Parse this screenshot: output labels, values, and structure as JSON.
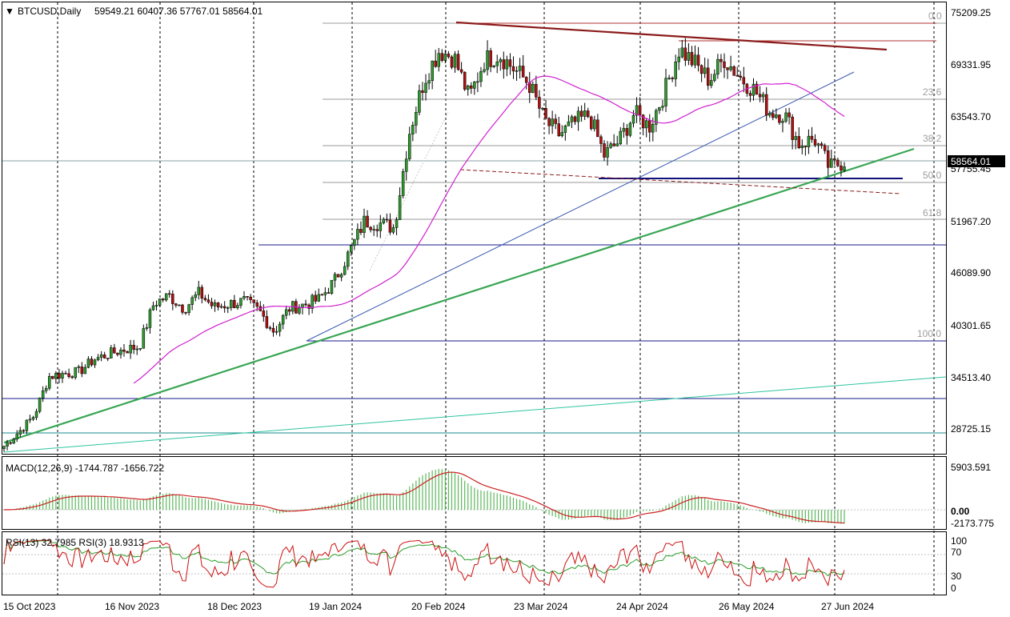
{
  "symbol": "BTCUSD",
  "timeframe": "Daily",
  "header": {
    "title": "BTCUSD,Daily",
    "ohlc": "59549.21 60407.36 57767.01 58564.01"
  },
  "current_price_label": "58564.01",
  "price_axis": [
    "75209.25",
    "69331.95",
    "63543.70",
    "57755.45",
    "51967.20",
    "46089.90",
    "40301.65",
    "34513.40",
    "28725.15"
  ],
  "fibonacci": {
    "levels": [
      "0.0",
      "23.6",
      "38.2",
      "50.0",
      "61.8",
      "100.0"
    ]
  },
  "macd": {
    "title": "MACD(12,26,9) -1744.787 -1656.722",
    "axis": [
      "5903.591",
      "0.00",
      "-2173.775"
    ]
  },
  "rsi": {
    "title": "RSI(13) 32.7985 RSI(3) 18.9313",
    "axis": [
      "100",
      "70",
      "30",
      "0"
    ]
  },
  "time_axis": [
    "15 Oct 2023",
    "16 Nov 2023",
    "18 Dec 2023",
    "19 Jan 2024",
    "20 Feb 2024",
    "23 Mar 2024",
    "24 Apr 2024",
    "26 May 2024",
    "27 Jun 2024"
  ],
  "colors": {
    "bull": "#2e9b2e",
    "bear": "#b01010",
    "ma": "#d020d0",
    "macd_hist": "#5cb85c",
    "macd_signal": "#cc2020",
    "rsi13": "#2a9d2a",
    "rsi3": "#cc1111",
    "trend_green": "#3aa655",
    "resistance": "#8b1a1a",
    "support": "#1a1a8b"
  },
  "chart_data": {
    "type": "candlestick",
    "title": "BTCUSD,Daily",
    "x_start": "2023-10-12",
    "y_range": [
      23500,
      76000
    ],
    "candles_close_weekly": [
      26800,
      28400,
      30200,
      34600,
      34900,
      35100,
      36500,
      37100,
      37600,
      37900,
      42800,
      43600,
      42200,
      43900,
      42300,
      42700,
      43000,
      41900,
      39600,
      42200,
      42600,
      43200,
      45200,
      48400,
      51900,
      51700,
      51200,
      61800,
      67800,
      71000,
      70200,
      65700,
      69900,
      70600,
      68900,
      67300,
      63200,
      61600,
      62900,
      63800,
      59300,
      60900,
      64000,
      62500,
      66300,
      71200,
      69600,
      67700,
      70100,
      68100,
      66600,
      64200,
      63900,
      60500,
      61200,
      57900,
      58600
    ],
    "macd": {
      "latest": -1744.787,
      "signal": -1656.722,
      "ylim": [
        -2173.775,
        5903.591
      ]
    },
    "rsi": {
      "rsi13_latest": 32.7985,
      "rsi3_latest": 18.9313,
      "levels": [
        70,
        30
      ]
    },
    "fib_levels": [
      0.0,
      23.6,
      38.2,
      50.0,
      61.8,
      100.0
    ]
  }
}
